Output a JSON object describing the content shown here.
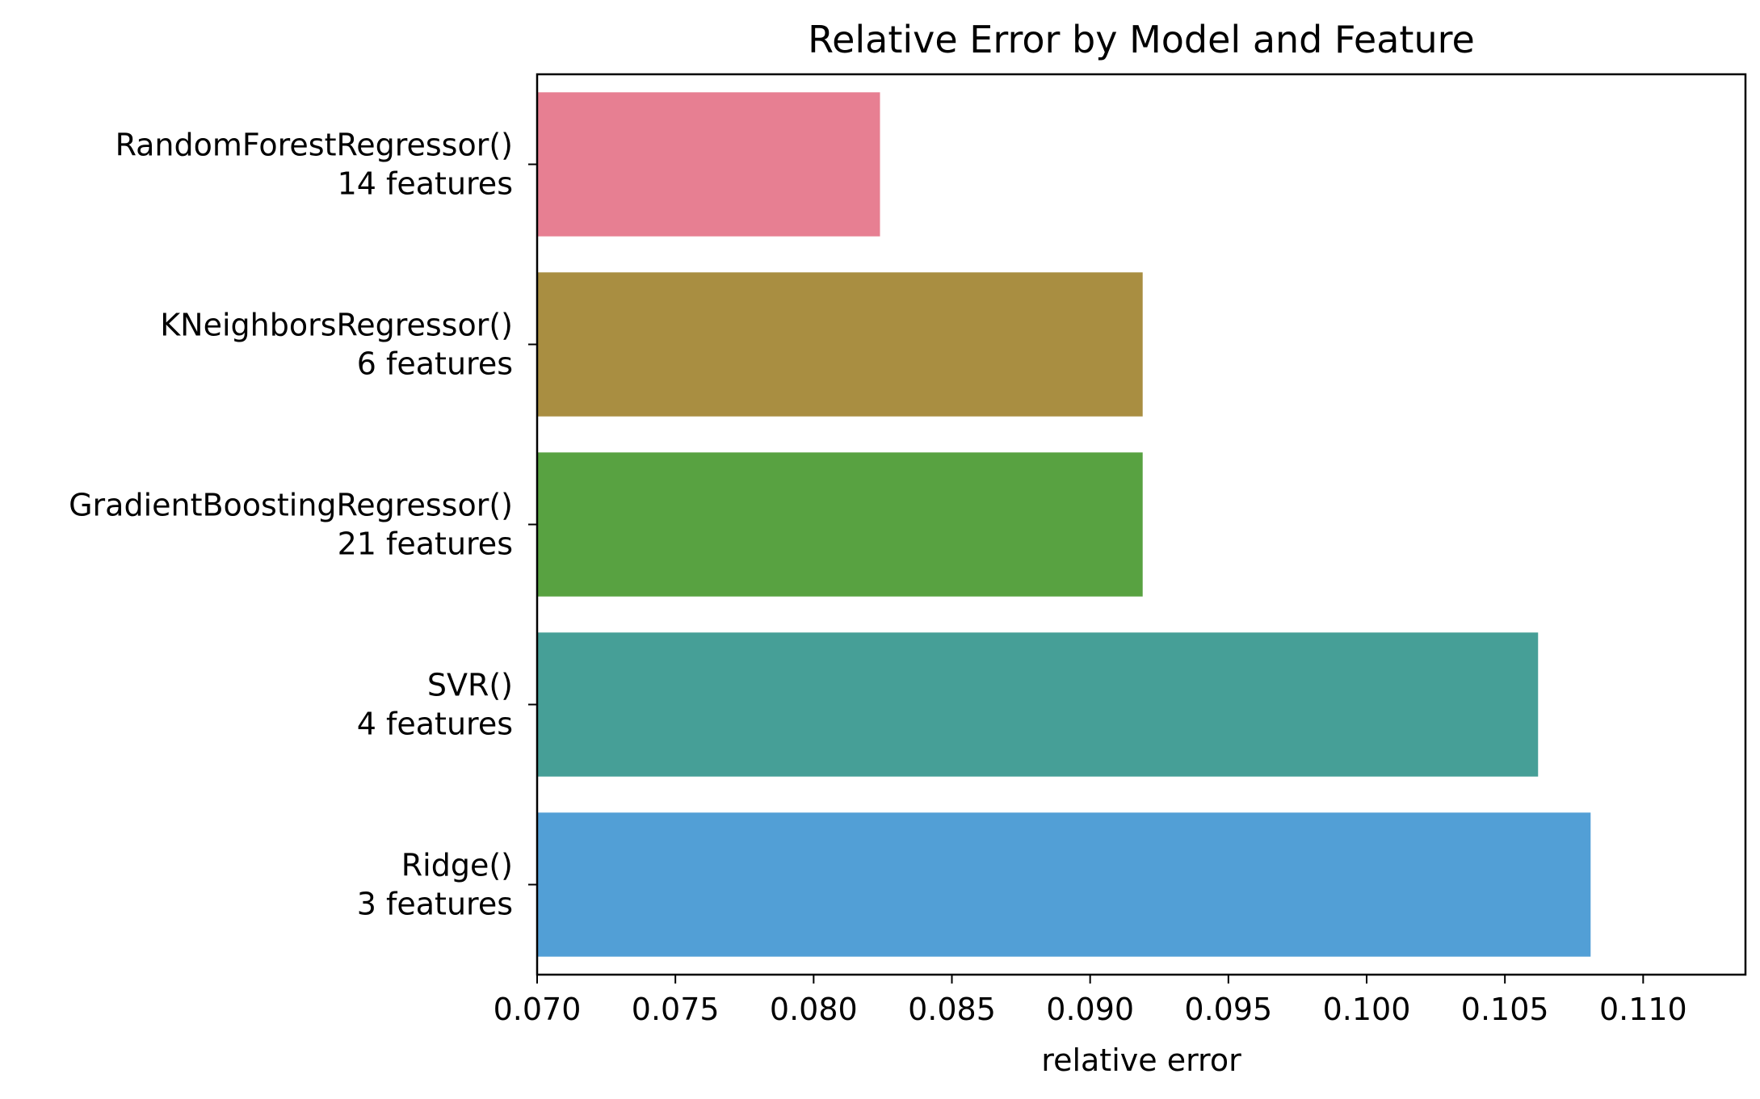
{
  "chart_data": {
    "type": "bar",
    "orientation": "horizontal",
    "title": "Relative Error by Model and Feature",
    "xlabel": "relative error",
    "ylabel": "",
    "xlim": [
      0.07,
      0.1137
    ],
    "xticks": [
      "0.070",
      "0.075",
      "0.080",
      "0.085",
      "0.090",
      "0.095",
      "0.100",
      "0.105",
      "0.110"
    ],
    "grid": false,
    "categories": [
      [
        "RandomForestRegressor()",
        "14 features"
      ],
      [
        "KNeighborsRegressor()",
        "6 features"
      ],
      [
        "GradientBoostingRegressor()",
        "21 features"
      ],
      [
        "SVR()",
        "4 features"
      ],
      [
        "Ridge()",
        "3 features"
      ]
    ],
    "values": [
      0.0824,
      0.0919,
      0.0919,
      0.1062,
      0.1081
    ],
    "colors": [
      "#e77f92",
      "#a98e41",
      "#58a241",
      "#469f97",
      "#529fd6"
    ]
  }
}
